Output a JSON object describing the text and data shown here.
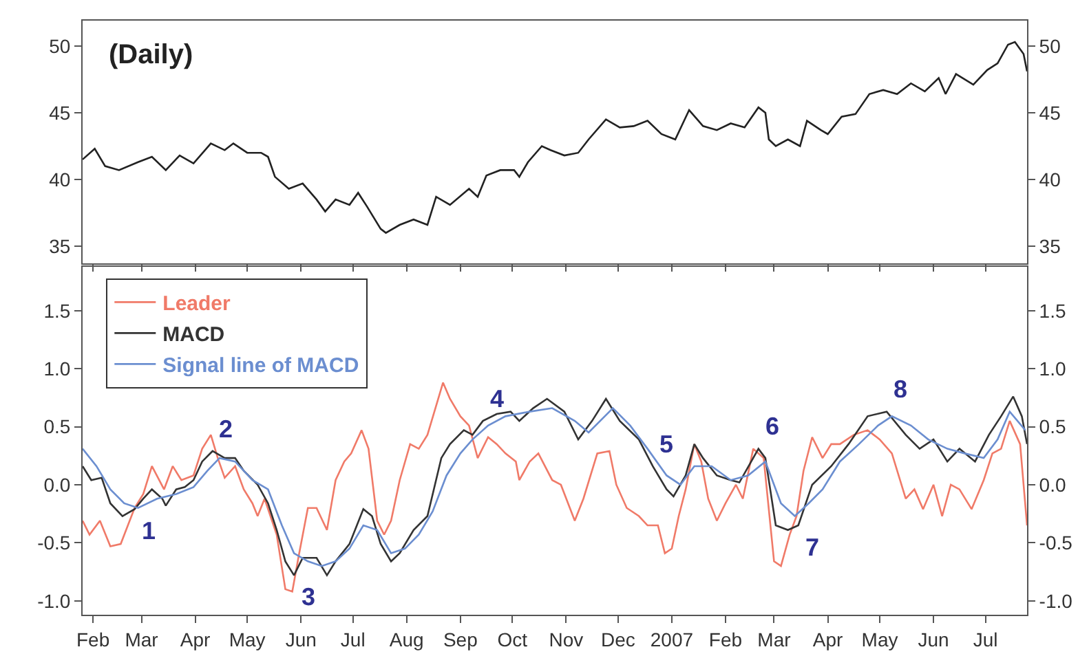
{
  "chart_data": [
    {
      "type": "line",
      "title": "(Daily)",
      "tick_labels": "y",
      "xlim": [
        "2006-01-26",
        "2007-07-25"
      ],
      "xticks": [
        {
          "value": "2006-02-01",
          "label": null
        },
        {
          "value": "2006-03-01",
          "label": null
        },
        {
          "value": "2006-04-01",
          "label": null
        },
        {
          "value": "2006-05-01",
          "label": null
        },
        {
          "value": "2006-06-01",
          "label": null
        },
        {
          "value": "2006-07-01",
          "label": null
        },
        {
          "value": "2006-08-01",
          "label": null
        },
        {
          "value": "2006-09-01",
          "label": null
        },
        {
          "value": "2006-10-01",
          "label": null
        },
        {
          "value": "2006-11-01",
          "label": null
        },
        {
          "value": "2006-12-01",
          "label": null
        },
        {
          "value": "2007-01-01",
          "label": null
        },
        {
          "value": "2007-02-01",
          "label": null
        },
        {
          "value": "2007-03-01",
          "label": null
        },
        {
          "value": "2007-04-01",
          "label": null
        },
        {
          "value": "2007-05-01",
          "label": null
        },
        {
          "value": "2007-06-01",
          "label": null
        },
        {
          "value": "2007-07-01",
          "label": null
        }
      ],
      "ylim": [
        33.7,
        51.9
      ],
      "yticks": [
        35,
        40,
        45,
        50
      ],
      "y2lim": [
        33.7,
        51.9
      ],
      "y2ticks": [
        35,
        40,
        45,
        50
      ],
      "series": [
        {
          "color": "#222222",
          "x": [
            "2006-01-26",
            "2006-02-02",
            "2006-02-08",
            "2006-02-16",
            "2006-02-27",
            "2006-03-07",
            "2006-03-15",
            "2006-03-23",
            "2006-03-31",
            "2006-04-10",
            "2006-04-18",
            "2006-04-23",
            "2006-05-01",
            "2006-05-09",
            "2006-05-13",
            "2006-05-17",
            "2006-05-25",
            "2006-06-02",
            "2006-06-10",
            "2006-06-15",
            "2006-06-21",
            "2006-06-29",
            "2006-07-04",
            "2006-07-09",
            "2006-07-17",
            "2006-07-20",
            "2006-07-28",
            "2006-08-05",
            "2006-08-13",
            "2006-08-18",
            "2006-08-26",
            "2006-09-06",
            "2006-09-11",
            "2006-09-16",
            "2006-09-24",
            "2006-10-02",
            "2006-10-05",
            "2006-10-10",
            "2006-10-18",
            "2006-10-23",
            "2006-10-31",
            "2006-11-08",
            "2006-11-14",
            "2006-11-24",
            "2006-12-02",
            "2006-12-10",
            "2006-12-18",
            "2006-12-26",
            "2007-01-03",
            "2007-01-11",
            "2007-01-19",
            "2007-01-27",
            "2007-02-04",
            "2007-02-12",
            "2007-02-20",
            "2007-02-24",
            "2007-02-26",
            "2007-03-02",
            "2007-03-09",
            "2007-03-16",
            "2007-03-20",
            "2007-03-28",
            "2007-04-01",
            "2007-04-09",
            "2007-04-17",
            "2007-04-25",
            "2007-05-03",
            "2007-05-11",
            "2007-05-19",
            "2007-05-27",
            "2007-06-04",
            "2007-06-08",
            "2007-06-14",
            "2007-06-24",
            "2007-07-02",
            "2007-07-08",
            "2007-07-14",
            "2007-07-18",
            "2007-07-23",
            "2007-07-25"
          ],
          "values": [
            41.5,
            42.3,
            41.0,
            40.7,
            41.3,
            41.7,
            40.7,
            41.8,
            41.2,
            42.7,
            42.2,
            42.7,
            42.0,
            42.0,
            41.7,
            40.2,
            39.3,
            39.7,
            38.5,
            37.6,
            38.5,
            38.1,
            39.0,
            38.0,
            36.3,
            36.0,
            36.6,
            37.0,
            36.6,
            38.7,
            38.1,
            39.3,
            38.7,
            40.3,
            40.7,
            40.7,
            40.2,
            41.3,
            42.5,
            42.2,
            41.8,
            42.0,
            43.0,
            44.5,
            43.9,
            44.0,
            44.4,
            43.4,
            43.0,
            45.2,
            44.0,
            43.7,
            44.2,
            43.9,
            45.4,
            45.0,
            43.0,
            42.5,
            43.0,
            42.5,
            44.4,
            43.7,
            43.4,
            44.7,
            44.9,
            46.4,
            46.7,
            46.4,
            47.2,
            46.6,
            47.6,
            46.4,
            47.9,
            47.1,
            48.2,
            48.7,
            50.1,
            50.3,
            49.4,
            48.1
          ]
        }
      ]
    },
    {
      "type": "line",
      "legend": "top left",
      "xlim": [
        "2006-01-26",
        "2007-07-25"
      ],
      "xticks": [
        {
          "value": "2006-02-01",
          "label": "Feb"
        },
        {
          "value": "2006-03-01",
          "label": "Mar"
        },
        {
          "value": "2006-04-01",
          "label": "Apr"
        },
        {
          "value": "2006-05-01",
          "label": "May"
        },
        {
          "value": "2006-06-01",
          "label": "Jun"
        },
        {
          "value": "2006-07-01",
          "label": "Jul"
        },
        {
          "value": "2006-08-01",
          "label": "Aug"
        },
        {
          "value": "2006-09-01",
          "label": "Sep"
        },
        {
          "value": "2006-10-01",
          "label": "Oct"
        },
        {
          "value": "2006-11-01",
          "label": "Nov"
        },
        {
          "value": "2006-12-01",
          "label": "Dec"
        },
        {
          "value": "2007-01-01",
          "label": "2007"
        },
        {
          "value": "2007-02-01",
          "label": "Feb"
        },
        {
          "value": "2007-03-01",
          "label": "Mar"
        },
        {
          "value": "2007-04-01",
          "label": "Apr"
        },
        {
          "value": "2007-05-01",
          "label": "May"
        },
        {
          "value": "2007-06-01",
          "label": "Jun"
        },
        {
          "value": "2007-07-01",
          "label": "Jul"
        }
      ],
      "ylim": [
        -1.12,
        1.88
      ],
      "yticks": [
        {
          "value": -1,
          "label": "-1.0"
        },
        {
          "value": -0.5,
          "label": "-0.5"
        },
        {
          "value": 0,
          "label": "0.0"
        },
        {
          "value": 0.5,
          "label": "0.5"
        },
        {
          "value": 1,
          "label": "1.0"
        },
        {
          "value": 1.5,
          "label": "1.5"
        }
      ],
      "y2lim": [
        -1.12,
        1.88
      ],
      "y2ticks": [
        {
          "value": -1,
          "label": "-1.0"
        },
        {
          "value": -0.5,
          "label": "-0.5"
        },
        {
          "value": 0,
          "label": "0.0"
        },
        {
          "value": 0.5,
          "label": "0.5"
        },
        {
          "value": 1,
          "label": "1.0"
        },
        {
          "value": 1.5,
          "label": "1.5"
        }
      ],
      "series": [
        {
          "name": "Leader",
          "color": "#f07a68",
          "x": [
            "2006-01-26",
            "2006-01-30",
            "2006-02-05",
            "2006-02-11",
            "2006-02-17",
            "2006-02-25",
            "2006-03-02",
            "2006-03-07",
            "2006-03-14",
            "2006-03-19",
            "2006-03-24",
            "2006-03-31",
            "2006-04-05",
            "2006-04-10",
            "2006-04-14",
            "2006-04-18",
            "2006-04-24",
            "2006-04-29",
            "2006-05-04",
            "2006-05-07",
            "2006-05-11",
            "2006-05-18",
            "2006-05-23",
            "2006-05-27",
            "2006-05-31",
            "2006-06-05",
            "2006-06-10",
            "2006-06-16",
            "2006-06-21",
            "2006-06-26",
            "2006-06-30",
            "2006-07-06",
            "2006-07-10",
            "2006-07-15",
            "2006-07-19",
            "2006-07-23",
            "2006-07-28",
            "2006-08-03",
            "2006-08-08",
            "2006-08-13",
            "2006-08-17",
            "2006-08-22",
            "2006-08-26",
            "2006-09-01",
            "2006-09-06",
            "2006-09-11",
            "2006-09-17",
            "2006-09-22",
            "2006-09-27",
            "2006-10-03",
            "2006-10-05",
            "2006-10-11",
            "2006-10-16",
            "2006-10-24",
            "2006-10-29",
            "2006-11-06",
            "2006-11-11",
            "2006-11-19",
            "2006-11-26",
            "2006-11-30",
            "2006-12-06",
            "2006-12-13",
            "2006-12-18",
            "2006-12-24",
            "2006-12-28",
            "2007-01-01",
            "2007-01-05",
            "2007-01-09",
            "2007-01-14",
            "2007-01-18",
            "2007-01-22",
            "2007-01-27",
            "2007-02-01",
            "2007-02-07",
            "2007-02-11",
            "2007-02-17",
            "2007-02-23",
            "2007-03-01",
            "2007-03-05",
            "2007-03-10",
            "2007-03-14",
            "2007-03-18",
            "2007-03-23",
            "2007-03-29",
            "2007-04-03",
            "2007-04-08",
            "2007-04-16",
            "2007-04-24",
            "2007-05-01",
            "2007-05-08",
            "2007-05-16",
            "2007-05-21",
            "2007-05-26",
            "2007-06-01",
            "2007-06-06",
            "2007-06-11",
            "2007-06-16",
            "2007-06-23",
            "2007-06-30",
            "2007-07-05",
            "2007-07-10",
            "2007-07-15",
            "2007-07-21",
            "2007-07-25"
          ],
          "values": [
            -0.31,
            -0.43,
            -0.31,
            -0.53,
            -0.51,
            -0.2,
            -0.08,
            0.16,
            -0.04,
            0.16,
            0.04,
            0.08,
            0.31,
            0.43,
            0.23,
            0.06,
            0.16,
            -0.04,
            -0.16,
            -0.27,
            -0.12,
            -0.43,
            -0.9,
            -0.92,
            -0.59,
            -0.2,
            -0.2,
            -0.39,
            0.04,
            0.2,
            0.27,
            0.47,
            0.31,
            -0.31,
            -0.43,
            -0.31,
            0.04,
            0.35,
            0.31,
            0.43,
            0.63,
            0.88,
            0.74,
            0.59,
            0.51,
            0.23,
            0.41,
            0.35,
            0.27,
            0.2,
            0.04,
            0.2,
            0.27,
            0.04,
            0.0,
            -0.31,
            -0.12,
            0.27,
            0.29,
            0.0,
            -0.2,
            -0.27,
            -0.35,
            -0.35,
            -0.59,
            -0.55,
            -0.27,
            -0.04,
            0.35,
            0.2,
            -0.12,
            -0.31,
            -0.16,
            0.0,
            -0.12,
            0.31,
            0.23,
            -0.66,
            -0.7,
            -0.43,
            -0.27,
            0.12,
            0.41,
            0.23,
            0.35,
            0.35,
            0.43,
            0.47,
            0.39,
            0.27,
            -0.12,
            -0.04,
            -0.21,
            0.0,
            -0.27,
            0.0,
            -0.04,
            -0.21,
            0.04,
            0.27,
            0.31,
            0.55,
            0.35,
            -0.35
          ]
        },
        {
          "name": "MACD",
          "color": "#333333",
          "x": [
            "2006-01-26",
            "2006-01-31",
            "2006-02-06",
            "2006-02-11",
            "2006-02-18",
            "2006-02-25",
            "2006-03-02",
            "2006-03-07",
            "2006-03-13",
            "2006-03-15",
            "2006-03-21",
            "2006-03-26",
            "2006-03-31",
            "2006-04-05",
            "2006-04-11",
            "2006-04-18",
            "2006-04-24",
            "2006-04-29",
            "2006-05-07",
            "2006-05-13",
            "2006-05-18",
            "2006-05-23",
            "2006-05-28",
            "2006-06-02",
            "2006-06-10",
            "2006-06-16",
            "2006-06-21",
            "2006-06-29",
            "2006-07-07",
            "2006-07-12",
            "2006-07-17",
            "2006-07-23",
            "2006-07-28",
            "2006-08-05",
            "2006-08-13",
            "2006-08-21",
            "2006-08-26",
            "2006-09-03",
            "2006-09-08",
            "2006-09-14",
            "2006-09-22",
            "2006-09-30",
            "2006-10-05",
            "2006-10-13",
            "2006-10-21",
            "2006-10-31",
            "2006-11-08",
            "2006-11-16",
            "2006-11-24",
            "2006-12-02",
            "2006-12-13",
            "2006-12-21",
            "2006-12-29",
            "2007-01-02",
            "2007-01-09",
            "2007-01-14",
            "2007-01-19",
            "2007-01-27",
            "2007-02-04",
            "2007-02-09",
            "2007-02-20",
            "2007-02-24",
            "2007-03-02",
            "2007-03-09",
            "2007-03-15",
            "2007-03-23",
            "2007-04-03",
            "2007-04-13",
            "2007-04-24",
            "2007-05-05",
            "2007-05-16",
            "2007-05-24",
            "2007-06-01",
            "2007-06-09",
            "2007-06-16",
            "2007-06-25",
            "2007-07-03",
            "2007-07-10",
            "2007-07-17",
            "2007-07-22",
            "2007-07-25"
          ],
          "values": [
            0.16,
            0.04,
            0.06,
            -0.16,
            -0.27,
            -0.21,
            -0.12,
            -0.04,
            -0.12,
            -0.18,
            -0.04,
            -0.02,
            0.04,
            0.2,
            0.29,
            0.23,
            0.23,
            0.12,
            0.0,
            -0.16,
            -0.39,
            -0.66,
            -0.78,
            -0.63,
            -0.63,
            -0.78,
            -0.66,
            -0.51,
            -0.21,
            -0.27,
            -0.51,
            -0.66,
            -0.59,
            -0.39,
            -0.27,
            0.23,
            0.35,
            0.47,
            0.43,
            0.55,
            0.61,
            0.63,
            0.55,
            0.66,
            0.74,
            0.63,
            0.39,
            0.55,
            0.74,
            0.55,
            0.39,
            0.16,
            -0.04,
            -0.1,
            0.08,
            0.35,
            0.23,
            0.08,
            0.04,
            0.02,
            0.31,
            0.23,
            -0.35,
            -0.39,
            -0.35,
            0.0,
            0.16,
            0.35,
            0.59,
            0.63,
            0.43,
            0.31,
            0.39,
            0.2,
            0.31,
            0.2,
            0.43,
            0.59,
            0.76,
            0.59,
            0.35
          ]
        },
        {
          "name": "Signal line of MACD",
          "color": "#6b8ed0",
          "x": [
            "2006-01-26",
            "2006-02-03",
            "2006-02-11",
            "2006-02-19",
            "2006-02-27",
            "2006-03-10",
            "2006-03-21",
            "2006-03-31",
            "2006-04-08",
            "2006-04-15",
            "2006-04-24",
            "2006-05-04",
            "2006-05-13",
            "2006-05-21",
            "2006-05-28",
            "2006-06-05",
            "2006-06-13",
            "2006-06-21",
            "2006-06-29",
            "2006-07-07",
            "2006-07-15",
            "2006-07-23",
            "2006-07-31",
            "2006-08-08",
            "2006-08-16",
            "2006-08-24",
            "2006-09-01",
            "2006-09-08",
            "2006-09-17",
            "2006-09-27",
            "2006-10-11",
            "2006-10-24",
            "2006-11-06",
            "2006-11-14",
            "2006-11-28",
            "2006-12-08",
            "2006-12-18",
            "2006-12-29",
            "2007-01-06",
            "2007-01-14",
            "2007-01-24",
            "2007-02-04",
            "2007-02-14",
            "2007-02-24",
            "2007-03-05",
            "2007-03-13",
            "2007-03-21",
            "2007-03-29",
            "2007-04-08",
            "2007-04-19",
            "2007-04-30",
            "2007-05-08",
            "2007-05-19",
            "2007-05-29",
            "2007-06-09",
            "2007-06-19",
            "2007-06-30",
            "2007-07-08",
            "2007-07-15",
            "2007-07-24"
          ],
          "values": [
            0.31,
            0.16,
            -0.04,
            -0.16,
            -0.2,
            -0.12,
            -0.08,
            -0.02,
            0.12,
            0.23,
            0.2,
            0.04,
            -0.04,
            -0.35,
            -0.59,
            -0.66,
            -0.7,
            -0.66,
            -0.55,
            -0.35,
            -0.39,
            -0.59,
            -0.55,
            -0.43,
            -0.23,
            0.08,
            0.27,
            0.39,
            0.51,
            0.59,
            0.63,
            0.66,
            0.55,
            0.45,
            0.66,
            0.51,
            0.31,
            0.08,
            0.0,
            0.16,
            0.16,
            0.04,
            0.08,
            0.2,
            -0.16,
            -0.27,
            -0.16,
            -0.04,
            0.2,
            0.35,
            0.51,
            0.59,
            0.51,
            0.39,
            0.31,
            0.27,
            0.23,
            0.39,
            0.63,
            0.47
          ]
        }
      ],
      "annotations": [
        {
          "text": "1",
          "x": "2006-02-25",
          "y": -0.21
        },
        {
          "text": "2",
          "x": "2006-04-11",
          "y": 0.29
        },
        {
          "text": "3",
          "x": "2006-05-28",
          "y": -0.78
        },
        {
          "text": "4",
          "x": "2006-09-14",
          "y": 0.55
        },
        {
          "text": "5",
          "x": "2006-12-21",
          "y": 0.16
        },
        {
          "text": "6",
          "x": "2007-02-20",
          "y": 0.31
        },
        {
          "text": "7",
          "x": "2007-03-15",
          "y": -0.35
        },
        {
          "text": "8",
          "x": "2007-05-05",
          "y": 0.63
        }
      ]
    }
  ]
}
